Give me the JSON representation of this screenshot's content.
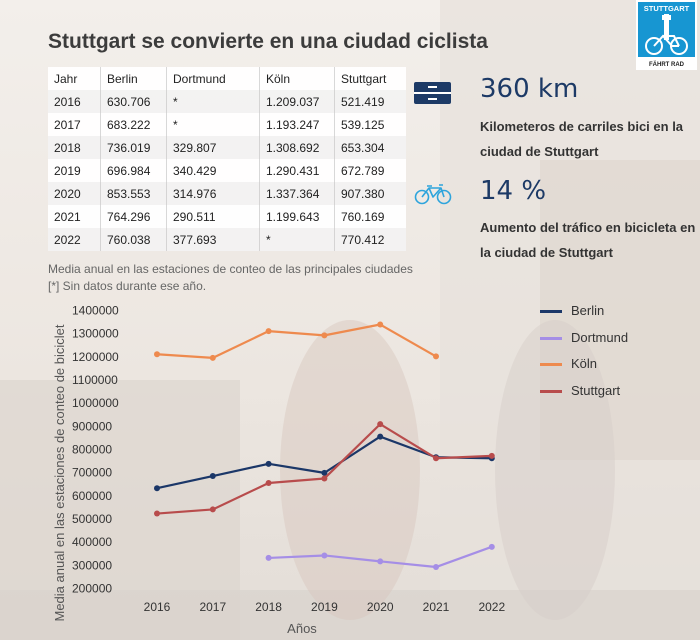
{
  "title": "Stuttgart se convierte en una ciudad ciclista",
  "logo": {
    "top": "STUTTGART",
    "bottom": "FÄHRT RAD"
  },
  "table": {
    "headers": [
      "Jahr",
      "Berlin",
      "Dortmund",
      "Köln",
      "Stuttgart"
    ],
    "rows": [
      [
        "2016",
        "630.706",
        "*",
        "1.209.037",
        "521.419"
      ],
      [
        "2017",
        "683.222",
        "*",
        "1.193.247",
        "539.125"
      ],
      [
        "2018",
        "736.019",
        "329.807",
        "1.308.692",
        "653.304"
      ],
      [
        "2019",
        "696.984",
        "340.429",
        "1.290.431",
        "672.789"
      ],
      [
        "2020",
        "853.553",
        "314.976",
        "1.337.364",
        "907.380"
      ],
      [
        "2021",
        "764.296",
        "290.511",
        "1.199.643",
        "760.169"
      ],
      [
        "2022",
        "760.038",
        "377.693",
        "*",
        "770.412"
      ]
    ]
  },
  "notes": {
    "line1": "Media anual en las estaciones de conteo de las principales ciudades",
    "line2": "[*] Sin datos durante ese año."
  },
  "stats": [
    {
      "value": "360 km",
      "description": "Kilometeros de carriles bici en la ciudad de Stuttgart",
      "icon": "bike-lane-icon"
    },
    {
      "value": "14 %",
      "description": "Aumento del tráfico en bicicleta en la ciudad de Stuttgart",
      "icon": "bicycle-icon"
    }
  ],
  "chart_data": {
    "type": "line",
    "x": [
      2016,
      2017,
      2018,
      2019,
      2020,
      2021,
      2022
    ],
    "xlabel": "Años",
    "ylabel": "Media anual en las estaciones de conteo de biciclet",
    "ylim": [
      200000,
      1400000
    ],
    "yticks": [
      200000,
      300000,
      400000,
      500000,
      600000,
      700000,
      800000,
      900000,
      1000000,
      1100000,
      1200000,
      1300000,
      1400000
    ],
    "grid": false,
    "legend": "top-right",
    "series": [
      {
        "name": "Berlin",
        "color": "#1b3768",
        "values": [
          630706,
          683222,
          736019,
          696984,
          853553,
          764296,
          760038
        ]
      },
      {
        "name": "Dortmund",
        "color": "#a58ee6",
        "values": [
          null,
          null,
          329807,
          340429,
          314976,
          290511,
          377693
        ]
      },
      {
        "name": "Köln",
        "color": "#ee8a4e",
        "values": [
          1209037,
          1193247,
          1308692,
          1290431,
          1337364,
          1199643,
          null
        ]
      },
      {
        "name": "Stuttgart",
        "color": "#b84c4c",
        "values": [
          521419,
          539125,
          653304,
          672789,
          907380,
          760169,
          770412
        ]
      }
    ]
  }
}
